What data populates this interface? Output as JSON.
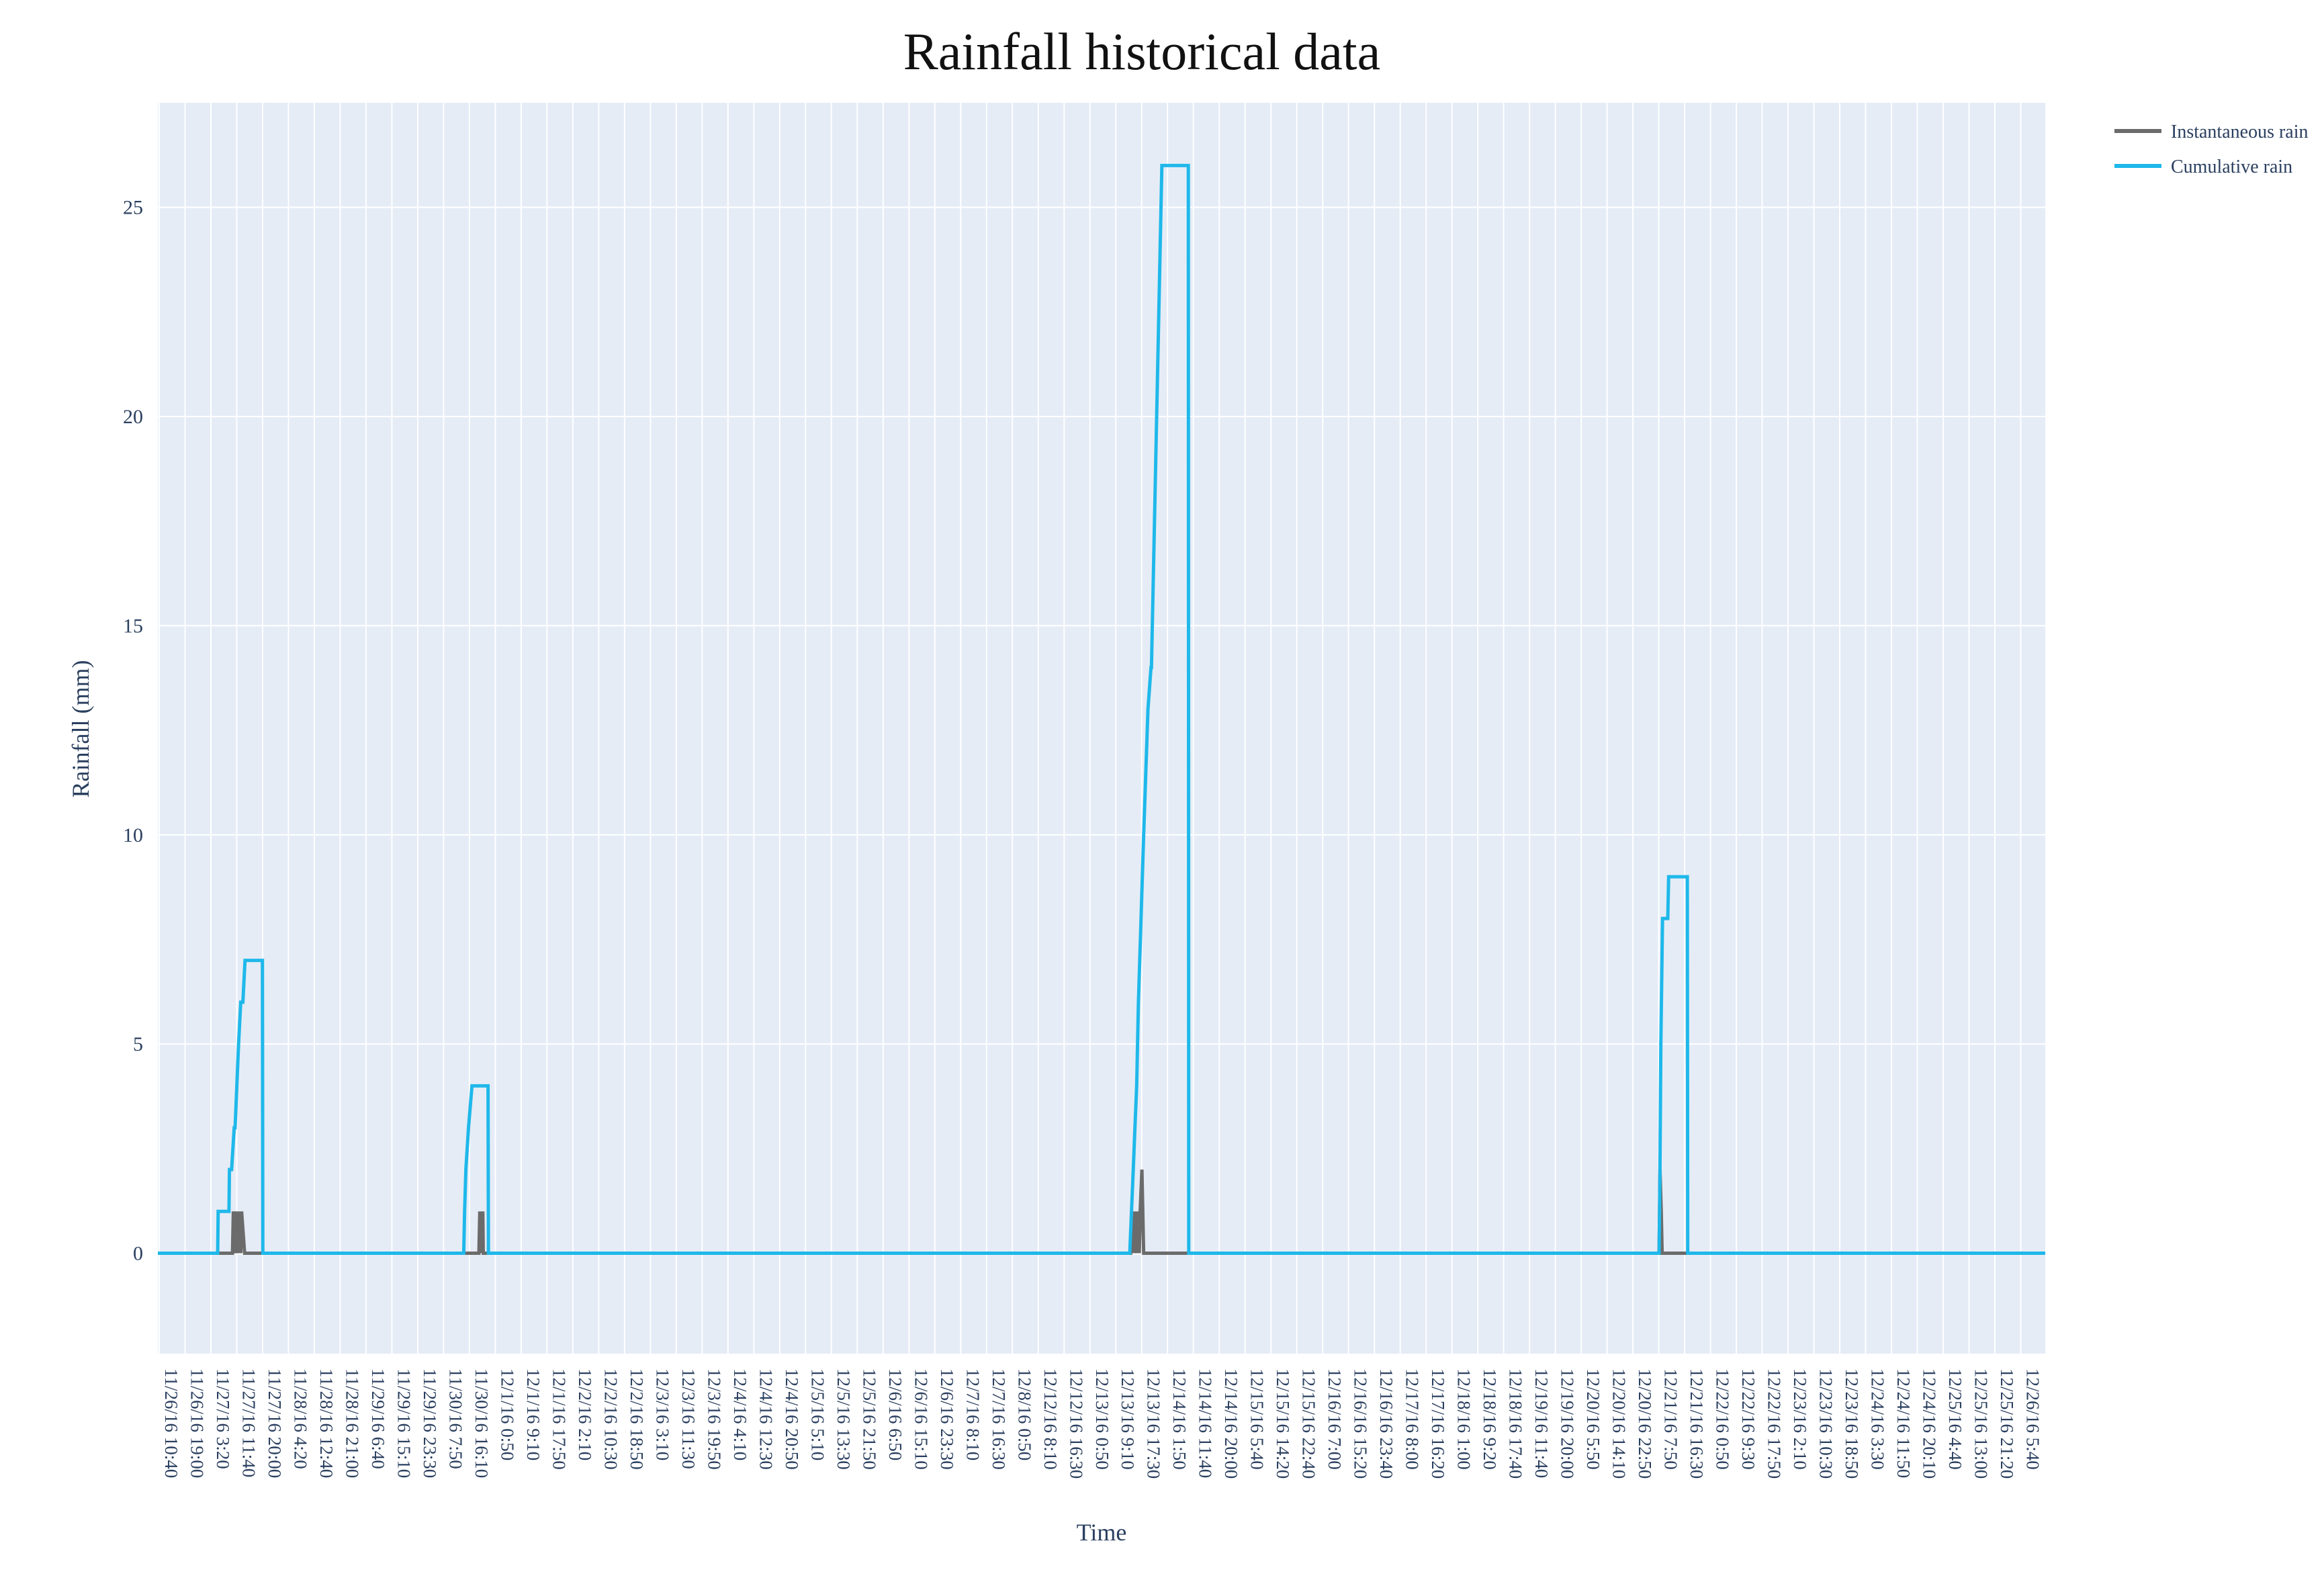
{
  "chart_data": {
    "type": "line",
    "title": "Rainfall historical data",
    "xlabel": "Time",
    "ylabel": "Rainfall (mm)",
    "ylim": [
      -2.4,
      27.5
    ],
    "yticks": [
      0,
      5,
      10,
      15,
      20,
      25
    ],
    "grid": true,
    "legend_position": "top-right",
    "background": "#e5ecf6",
    "x_unit": "10-minute samples from 11/26/16 10:40",
    "x_range": [
      0,
      4350
    ],
    "x_tick_labels": [
      "11/26/16 10:40",
      "11/26/16 19:00",
      "11/27/16 3:20",
      "11/27/16 11:40",
      "11/27/16 20:00",
      "11/28/16 4:20",
      "11/28/16 12:40",
      "11/28/16 21:00",
      "11/29/16 6:40",
      "11/29/16 15:10",
      "11/29/16 23:30",
      "11/30/16 7:50",
      "11/30/16 16:10",
      "12/1/16 0:50",
      "12/1/16 9:10",
      "12/1/16 17:50",
      "12/2/16 2:10",
      "12/2/16 10:30",
      "12/2/16 18:50",
      "12/3/16 3:10",
      "12/3/16 11:30",
      "12/3/16 19:50",
      "12/4/16 4:10",
      "12/4/16 12:30",
      "12/4/16 20:50",
      "12/5/16 5:10",
      "12/5/16 13:30",
      "12/5/16 21:50",
      "12/6/16 6:50",
      "12/6/16 15:10",
      "12/6/16 23:30",
      "12/7/16 8:10",
      "12/7/16 16:30",
      "12/8/16 0:50",
      "12/12/16 8:10",
      "12/12/16 16:30",
      "12/13/16 0:50",
      "12/13/16 9:10",
      "12/13/16 17:30",
      "12/14/16 1:50",
      "12/14/16 11:40",
      "12/14/16 20:00",
      "12/15/16 5:40",
      "12/15/16 14:20",
      "12/15/16 22:40",
      "12/16/16 7:00",
      "12/16/16 15:20",
      "12/16/16 23:40",
      "12/17/16 8:00",
      "12/17/16 16:20",
      "12/18/16 1:00",
      "12/18/16 9:20",
      "12/18/16 17:40",
      "12/19/16 11:40",
      "12/19/16 20:00",
      "12/20/16 5:50",
      "12/20/16 14:10",
      "12/20/16 22:50",
      "12/21/16 7:50",
      "12/21/16 16:30",
      "12/22/16 0:50",
      "12/22/16 9:30",
      "12/22/16 17:50",
      "12/23/16 2:10",
      "12/23/16 10:30",
      "12/23/16 18:50",
      "12/24/16 3:30",
      "12/24/16 11:50",
      "12/24/16 20:10",
      "12/25/16 4:40",
      "12/25/16 13:00",
      "12/25/16 21:20",
      "12/26/16 5:40"
    ],
    "series": [
      {
        "name": "Instantaneous rain",
        "color": "#6b6b6b",
        "x": [
          0,
          172,
          174,
          179,
          181,
          184,
          186,
          188,
          190,
          191,
          193,
          200,
          223,
          264,
          740,
          742,
          744,
          745,
          747,
          749,
          750,
          752,
          760,
          1880,
          2242,
          2244,
          2246,
          2248,
          2250,
          2252,
          2254,
          2256,
          2258,
          2260,
          2262,
          2264,
          2268,
          2272,
          2290,
          3460,
          3462,
          3465,
          3467,
          3469,
          3480,
          3525,
          4350
        ],
        "y": [
          0,
          0,
          1,
          0,
          1,
          0,
          1,
          0,
          1,
          0,
          1,
          0,
          0,
          0,
          0,
          1,
          0,
          1,
          0,
          1,
          0,
          0,
          0,
          0,
          0,
          1,
          0,
          1,
          0,
          1,
          0,
          1,
          0,
          1,
          0,
          1,
          2,
          0,
          0,
          0,
          2,
          1,
          0,
          0,
          0,
          0,
          0
        ]
      },
      {
        "name": "Cumulative rain",
        "color": "#1fb8ea",
        "x": [
          0,
          138,
          139,
          164,
          165,
          170,
          176,
          178,
          182,
          186,
          191,
          196,
          201,
          205,
          206,
          241,
          242,
          705,
          707,
          710,
          716,
          724,
          725,
          761,
          762,
          2240,
          2244,
          2248,
          2252,
          2256,
          2260,
          2266,
          2272,
          2282,
          2289,
          2290,
          2314,
          2316,
          2375,
          2376,
          3460,
          3462,
          3464,
          3468,
          3480,
          3482,
          3525,
          3526,
          4350
        ],
        "y": [
          0,
          0,
          1,
          1,
          2,
          2,
          3,
          3,
          4,
          5,
          6,
          6,
          7,
          7,
          7,
          7,
          0,
          0,
          1,
          2,
          3,
          4,
          4,
          4,
          0,
          0,
          1,
          2,
          3,
          4,
          6,
          8,
          10,
          13,
          14,
          14,
          26,
          26,
          26,
          0,
          0,
          2,
          5,
          8,
          8,
          9,
          9,
          0,
          0
        ]
      }
    ]
  }
}
